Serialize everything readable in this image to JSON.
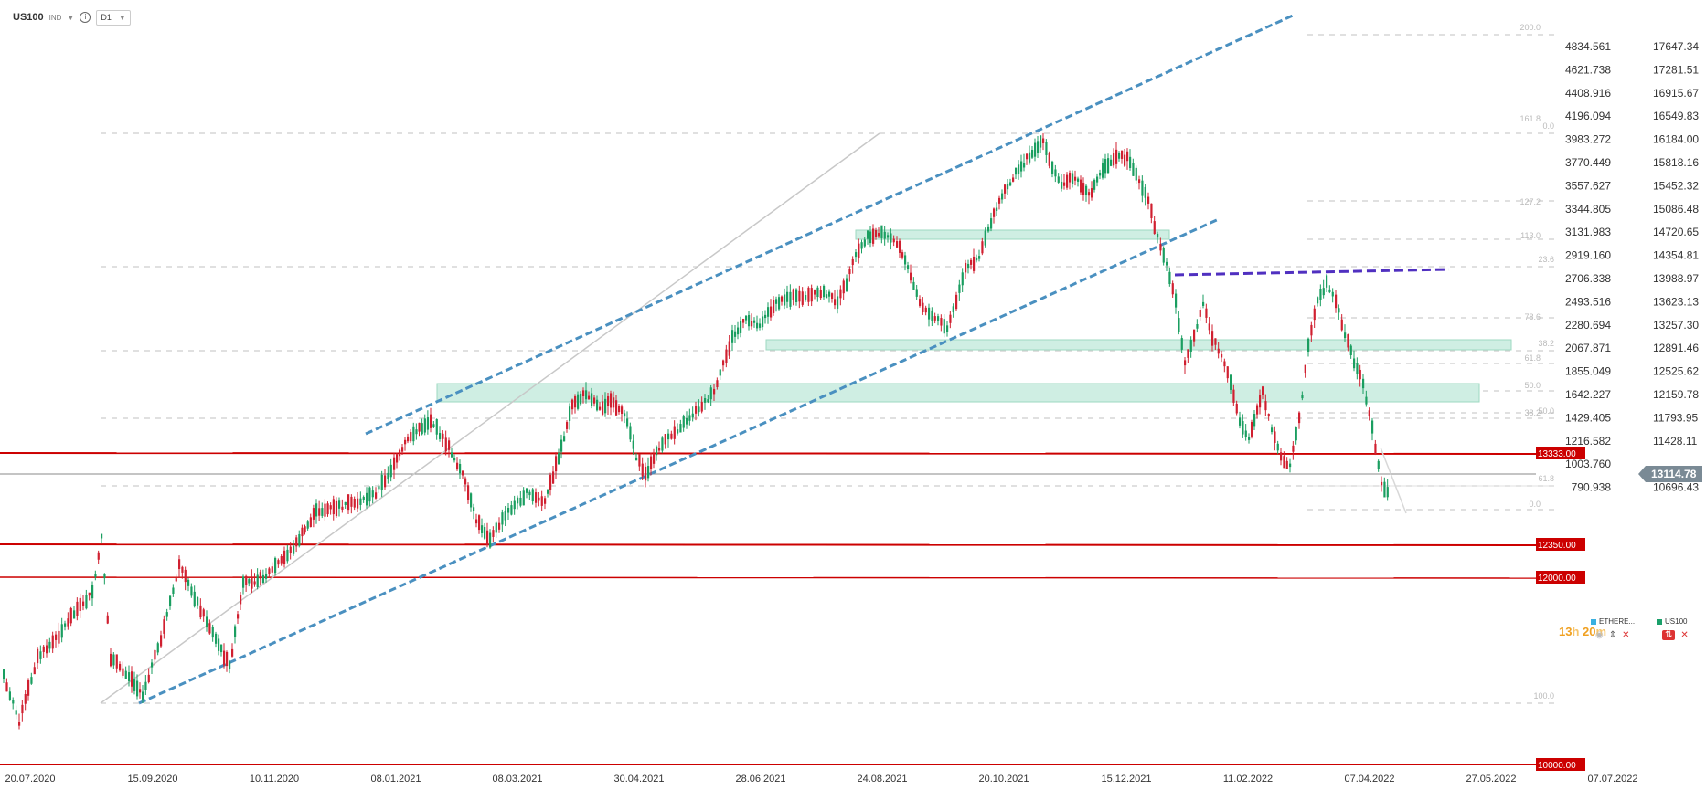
{
  "header": {
    "symbol": "US100",
    "category": "IND",
    "timeframe": "D1"
  },
  "price_axis": {
    "ticks": [
      "4834.561",
      "4621.738",
      "4408.916",
      "4196.094",
      "3983.272",
      "3770.449",
      "3557.627",
      "3344.805",
      "3131.983",
      "2919.160",
      "2706.338",
      "2493.516",
      "2280.694",
      "2067.871",
      "1855.049",
      "1642.227",
      "1429.405",
      "1216.582",
      "1003.760",
      "790.938"
    ],
    "ticks2": [
      "17647.34",
      "17281.51",
      "16915.67",
      "16549.83",
      "16184.00",
      "15818.16",
      "15452.32",
      "15086.48",
      "14720.65",
      "14354.81",
      "13988.97",
      "13623.13",
      "13257.30",
      "12891.46",
      "12525.62",
      "12159.78",
      "11793.95",
      "11428.11",
      "11062.27",
      "10696.43"
    ],
    "current_price": "13114.78"
  },
  "date_axis": {
    "ticks": [
      "20.07.2020",
      "15.09.2020",
      "10.11.2020",
      "08.01.2021",
      "08.03.2021",
      "30.04.2021",
      "28.06.2021",
      "24.08.2021",
      "20.10.2021",
      "15.12.2021",
      "11.02.2022",
      "07.04.2022",
      "27.05.2022",
      "07.07.2022"
    ]
  },
  "levels": [
    {
      "label": "13333.00",
      "color": "#cc0000"
    },
    {
      "label": "12350.00",
      "color": "#cc0000"
    },
    {
      "label": "12000.00",
      "color": "#cc0000"
    },
    {
      "label": "10000.00",
      "color": "#cc0000"
    }
  ],
  "fib_labels": [
    "0.0",
    "23.6",
    "38.2",
    "50.0",
    "61.8",
    "100.0",
    "161.8",
    "200.0",
    "127.2",
    "113.0",
    "78.6",
    "61.8",
    "50.0",
    "38.2",
    "0.0"
  ],
  "legend": {
    "item1": "ETHERE...",
    "item1_color": "#3ab0e0",
    "item2": "US100",
    "item2_color": "#1aa06a"
  },
  "timer": {
    "hours": "13",
    "h_unit": "h",
    "minutes": "20",
    "m_unit": "m"
  },
  "colors": {
    "bull": "#1a9e60",
    "bear": "#d02030",
    "channel": "#4a90c0",
    "resistance": "#cc0000",
    "zone": "#cfeee3",
    "purple": "#5030c0"
  }
}
